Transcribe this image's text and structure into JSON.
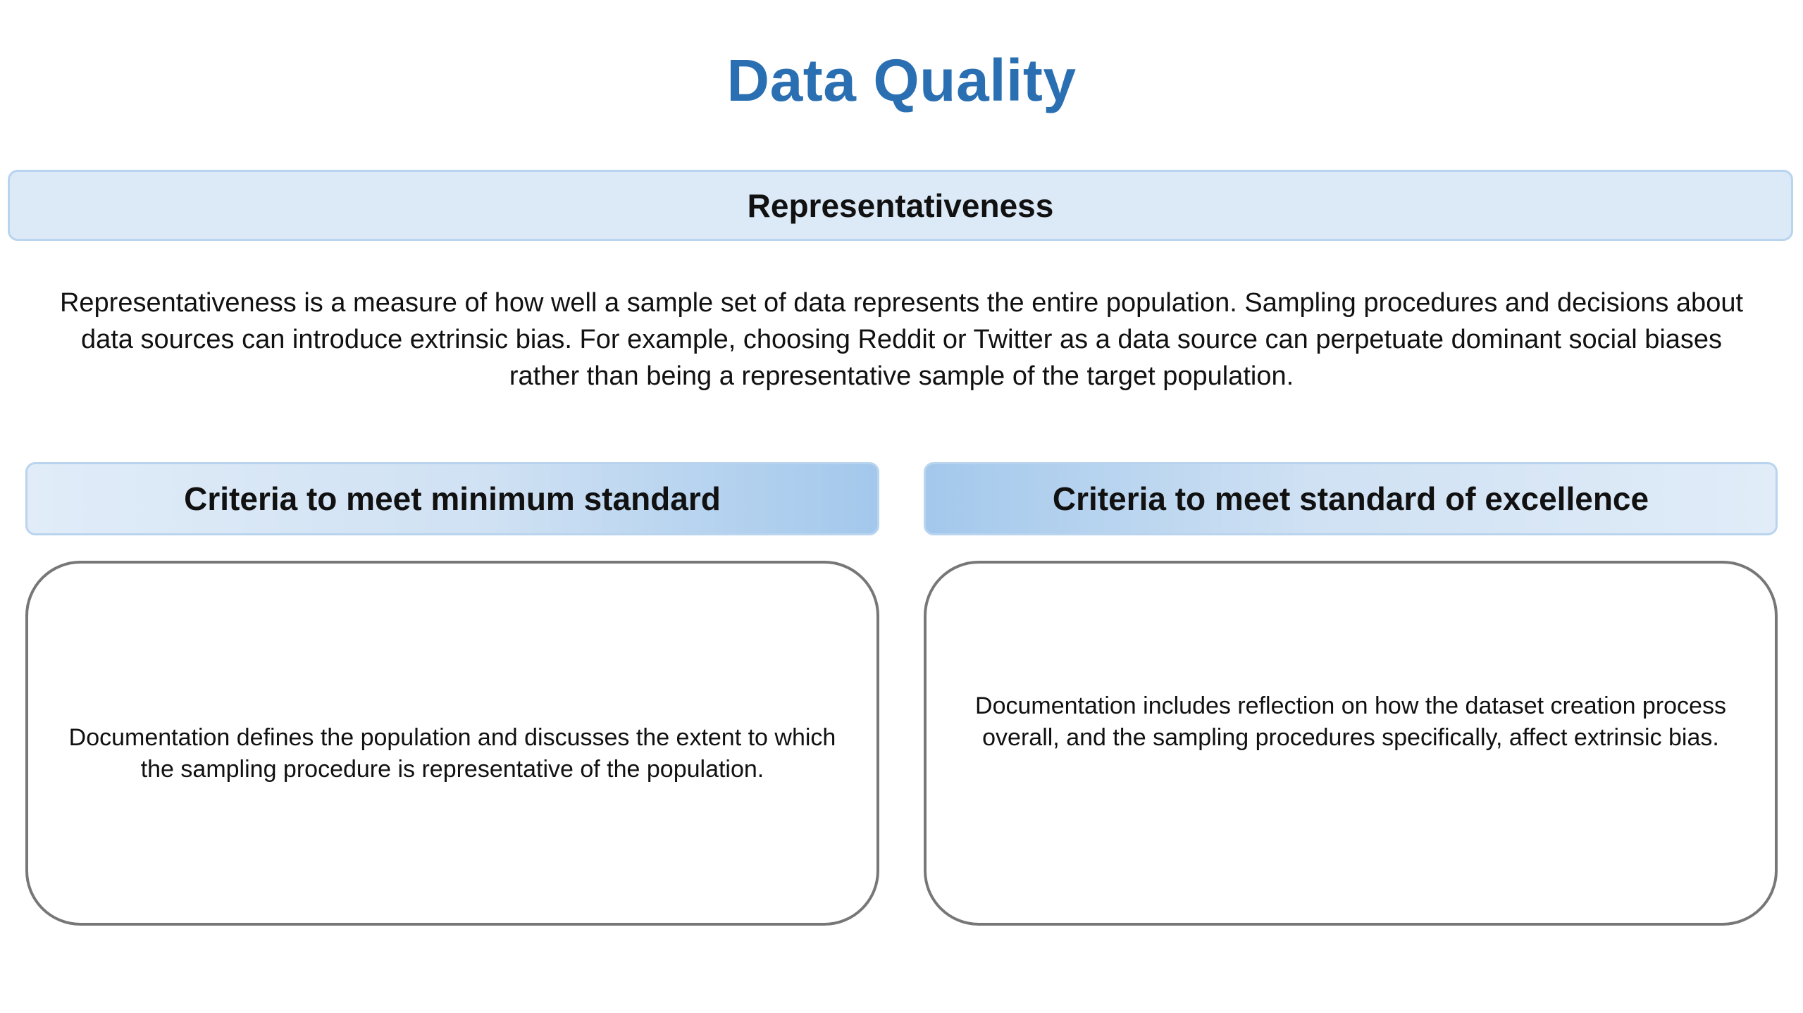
{
  "page": {
    "title": "Data Quality",
    "title_color": "#2a6fb2"
  },
  "section": {
    "label": "Representativeness",
    "description_lines": [
      "Representativeness is a measure of how well a sample set of data represents the entire population. Sampling procedures and decisions about",
      "data sources can introduce extrinsic bias. For example, choosing Reddit or Twitter as a data source can perpetuate dominant social biases",
      "rather than being a representative sample of the target population."
    ]
  },
  "criteria": {
    "minimum": {
      "header": "Criteria to meet minimum standard",
      "lines": [
        "Documentation defines the population and discusses the extent to which",
        "the sampling procedure is representative of the population."
      ]
    },
    "excellence": {
      "header": "Criteria to meet standard of excellence",
      "lines": [
        "Documentation includes reflection on how the dataset creation process",
        "overall, and the sampling procedures specifically, affect extrinsic bias."
      ]
    }
  },
  "colors": {
    "banner_fill": "#dce9f6",
    "banner_border": "#b9d4ee",
    "gradient_dark": "#a3c8ec",
    "box_border": "#777777"
  }
}
